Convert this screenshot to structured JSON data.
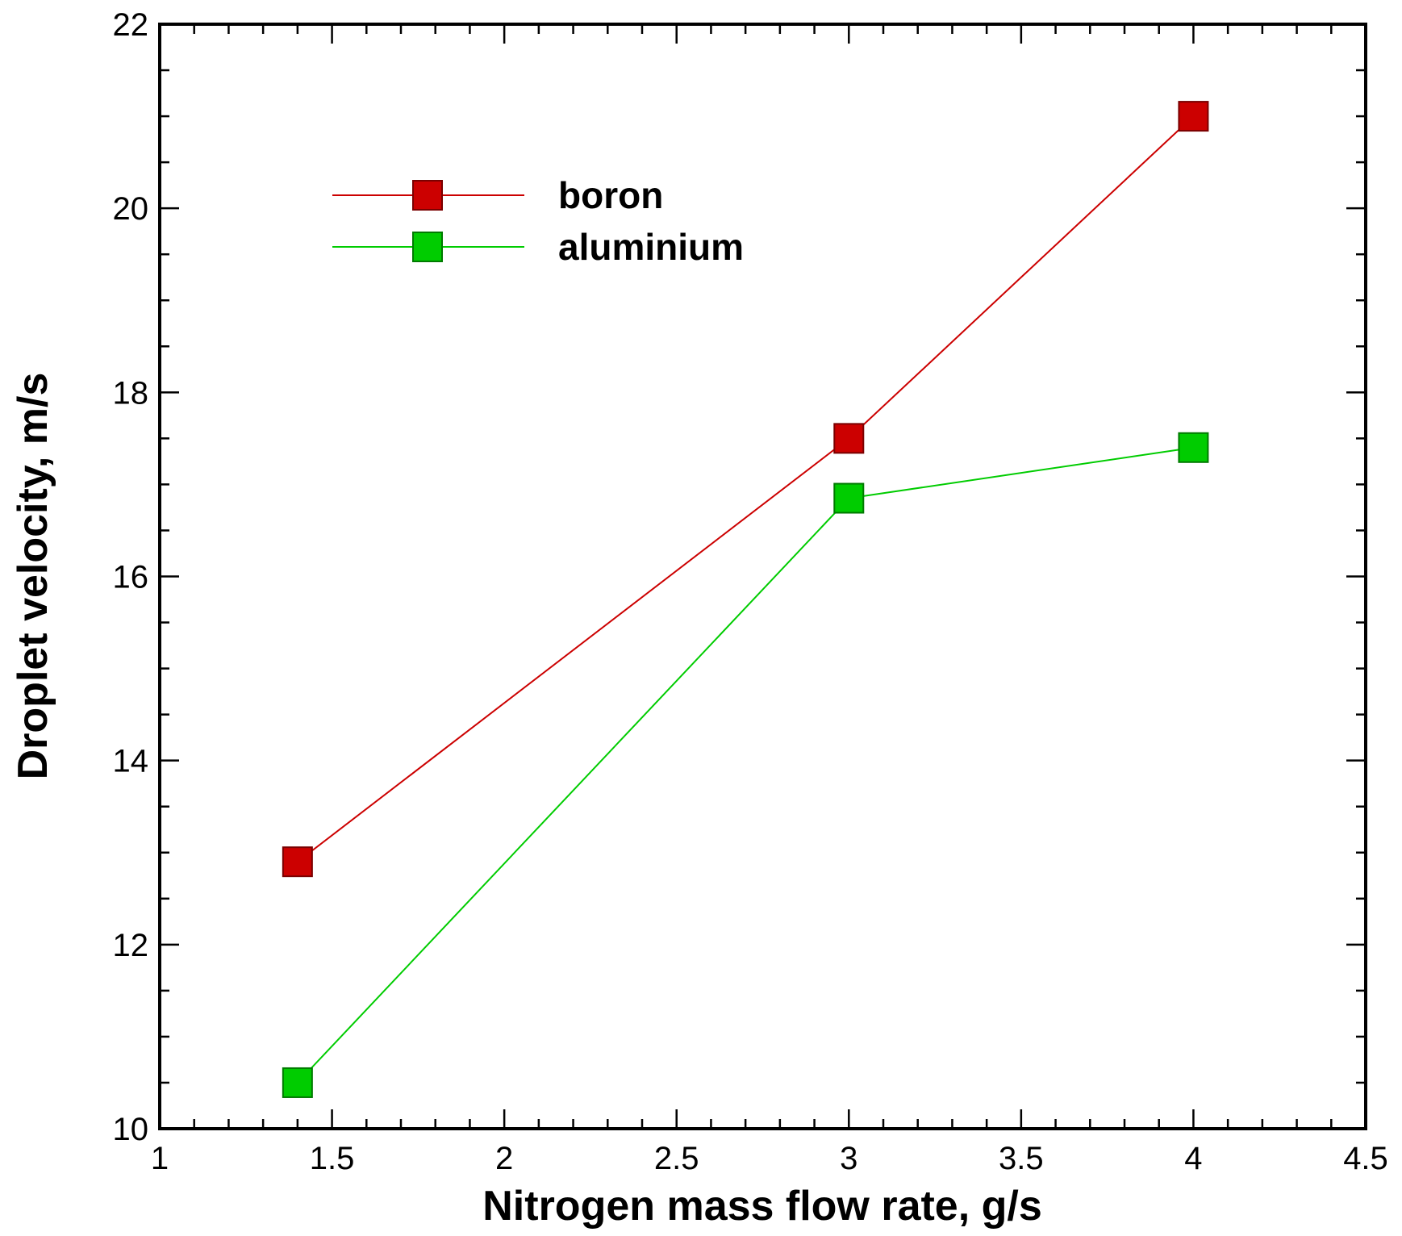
{
  "chart_data": {
    "type": "line",
    "title": "",
    "xlabel": "Nitrogen mass flow rate, g/s",
    "ylabel": "Droplet velocity, m/s",
    "xlim": [
      1,
      4.5
    ],
    "ylim": [
      10,
      22
    ],
    "xticks": [
      1,
      1.5,
      2,
      2.5,
      3,
      3.5,
      4,
      4.5
    ],
    "xtick_labels": [
      "1",
      "1.5",
      "2",
      "2.5",
      "3",
      "3.5",
      "4",
      "4.5"
    ],
    "yticks": [
      10,
      12,
      14,
      16,
      18,
      20,
      22
    ],
    "ytick_labels": [
      "10",
      "12",
      "14",
      "16",
      "18",
      "20",
      "22"
    ],
    "x_minor_step": 0.1,
    "y_minor_step": 0.5,
    "grid": false,
    "legend_position": "top-left",
    "series": [
      {
        "name": "boron",
        "color": "#cc0000",
        "marker": "square",
        "x": [
          1.4,
          3,
          4
        ],
        "y": [
          12.9,
          17.5,
          21.0
        ]
      },
      {
        "name": "aluminium",
        "color": "#00cc00",
        "marker": "square",
        "x": [
          1.4,
          3,
          4
        ],
        "y": [
          10.5,
          16.85,
          17.4
        ]
      }
    ]
  }
}
